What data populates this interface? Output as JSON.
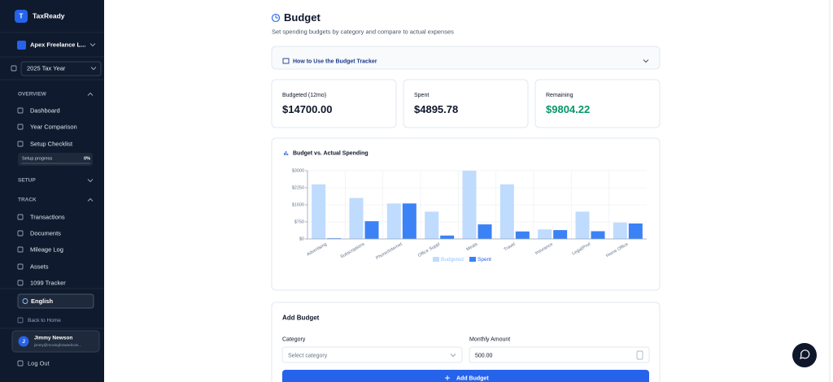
{
  "sidebar": {
    "logo": "T",
    "brand": "TaxReady",
    "business": "Apex Freelance L...",
    "tax_year": "2025 Tax Year",
    "sections": [
      {
        "title": "OVERVIEW",
        "items": [
          "Dashboard",
          "Year Comparison",
          "Setup Checklist"
        ]
      },
      {
        "title": "SETUP",
        "items": []
      },
      {
        "title": "TRACK",
        "items": [
          "Transactions",
          "Documents",
          "Mileage Log",
          "Assets",
          "1099 Tracker"
        ]
      }
    ],
    "progress": {
      "label": "Setup progress",
      "value": "0%"
    },
    "language": "English",
    "back": "Back to Home",
    "user": {
      "initial": "J",
      "name": "Jimmy Newson",
      "email": "jimmy@movingforwardcom..."
    },
    "logout": "Log Out"
  },
  "header": {
    "title": "Budget",
    "subtitle": "Set spending budgets by category and compare to actual expenses",
    "guide": "How to Use the Budget Tracker"
  },
  "cards": [
    {
      "label": "Budgeted (12mo)",
      "value": "$14700.00"
    },
    {
      "label": "Spent",
      "value": "$4895.78"
    },
    {
      "label": "Remaining",
      "value": "$9804.22"
    }
  ],
  "chart": {
    "type": "bar",
    "title": "Budget vs. Actual Spending",
    "categories": [
      "Advertising",
      "Subscriptions",
      "Phone/Internet",
      "Office Suppl",
      "Meals",
      "Travel",
      "Insurance",
      "Legal/Prof",
      "Home Office"
    ],
    "series": [
      {
        "name": "Budgeted",
        "color": "#bfdbfe",
        "values": [
          2400,
          1800,
          1560,
          1200,
          3000,
          2400,
          420,
          1200,
          720
        ]
      },
      {
        "name": "Spent",
        "color": "#3b82f6",
        "values": [
          30,
          780,
          1560,
          150,
          640,
          330,
          390,
          340,
          680
        ]
      }
    ],
    "ylim": [
      0,
      3000
    ],
    "yticks": [
      {
        "value": 0,
        "label": "$0"
      },
      {
        "value": 750,
        "label": "$750"
      },
      {
        "value": 1500,
        "label": "$1500"
      },
      {
        "value": 2250,
        "label": "$2250"
      },
      {
        "value": 3000,
        "label": "$3000"
      }
    ],
    "grid": true
  },
  "form": {
    "title": "Add Budget",
    "category_label": "Category",
    "category_placeholder": "Select category",
    "amount_label": "Monthly Amount",
    "amount_value": "500.00",
    "submit": "Add Budget"
  }
}
